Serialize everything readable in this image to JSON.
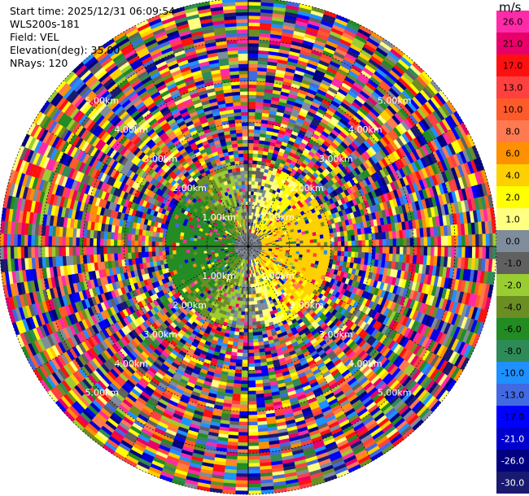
{
  "header": {
    "start_time": "Start time: 2025/12/31 06:09:54",
    "station": "WLS200s-181",
    "field": "Field: VEL",
    "elevation": "Elevation(deg): 35.00",
    "nrays": "NRays: 120"
  },
  "colorbar": {
    "unit": "m/s",
    "bins": [
      {
        "label": "26.0",
        "color": "#ff2aa8",
        "text": "#000000"
      },
      {
        "label": "21.0",
        "color": "#e8006a",
        "text": "#000000"
      },
      {
        "label": "17.0",
        "color": "#ff1010",
        "text": "#000000"
      },
      {
        "label": "13.0",
        "color": "#ff4040",
        "text": "#000000"
      },
      {
        "label": "10.0",
        "color": "#ff5a2a",
        "text": "#000000"
      },
      {
        "label": "8.0",
        "color": "#ff7a50",
        "text": "#000000"
      },
      {
        "label": "6.0",
        "color": "#ff9000",
        "text": "#000000"
      },
      {
        "label": "4.0",
        "color": "#ffd000",
        "text": "#000000"
      },
      {
        "label": "2.0",
        "color": "#ffff00",
        "text": "#000000"
      },
      {
        "label": "1.0",
        "color": "#ffff80",
        "text": "#000000"
      },
      {
        "label": "0.0",
        "color": "#7f8c9c",
        "text": "#000000"
      },
      {
        "label": "-1.0",
        "color": "#606060",
        "text": "#000000"
      },
      {
        "label": "-2.0",
        "color": "#9acd32",
        "text": "#000000"
      },
      {
        "label": "-4.0",
        "color": "#6b8e23",
        "text": "#000000"
      },
      {
        "label": "-6.0",
        "color": "#228b22",
        "text": "#000000"
      },
      {
        "label": "-8.0",
        "color": "#2e8b57",
        "text": "#000000"
      },
      {
        "label": "-10.0",
        "color": "#1e90ff",
        "text": "#000000"
      },
      {
        "label": "-13.0",
        "color": "#4169e1",
        "text": "#000000"
      },
      {
        "label": "-17.0",
        "color": "#0000ff",
        "text": "#000000"
      },
      {
        "label": "-21.0",
        "color": "#0000cd",
        "text": "#ffffff"
      },
      {
        "label": "-26.0",
        "color": "#000080",
        "text": "#ffffff"
      },
      {
        "label": "-30.0",
        "color": "#191970",
        "text": "#ffffff"
      }
    ]
  },
  "chart_data": {
    "type": "ppi",
    "field": "VEL",
    "units": "m/s",
    "elevation_deg": 35.0,
    "n_rays": 120,
    "max_range_km": 6.0,
    "range_rings_km": [
      1.0,
      2.0,
      3.0,
      4.0,
      5.0,
      6.0
    ],
    "range_ring_labels": [
      {
        "text": "1.00km",
        "angle_deg": 45
      },
      {
        "text": "1.00km",
        "angle_deg": 135
      },
      {
        "text": "1.00km",
        "angle_deg": 225
      },
      {
        "text": "1.00km",
        "angle_deg": 315
      },
      {
        "text": "2.00km",
        "angle_deg": 45
      },
      {
        "text": "2.00km",
        "angle_deg": 135
      },
      {
        "text": "2.00km",
        "angle_deg": 225
      },
      {
        "text": "2.00km",
        "angle_deg": 315
      },
      {
        "text": "3.00km",
        "angle_deg": 45
      },
      {
        "text": "3.00km",
        "angle_deg": 135
      },
      {
        "text": "3.00km",
        "angle_deg": 225
      },
      {
        "text": "3.00km",
        "angle_deg": 315
      },
      {
        "text": "4.00km",
        "angle_deg": 45
      },
      {
        "text": "4.00km",
        "angle_deg": 135
      },
      {
        "text": "4.00km",
        "angle_deg": 225
      },
      {
        "text": "4.00km",
        "angle_deg": 315
      },
      {
        "text": "5.00km",
        "angle_deg": 45
      },
      {
        "text": "5.00km",
        "angle_deg": 135
      },
      {
        "text": "5.00km",
        "angle_deg": 225
      },
      {
        "text": "5.00km",
        "angle_deg": 315
      }
    ],
    "colorbar_range": [
      -30.0,
      30.0
    ]
  }
}
